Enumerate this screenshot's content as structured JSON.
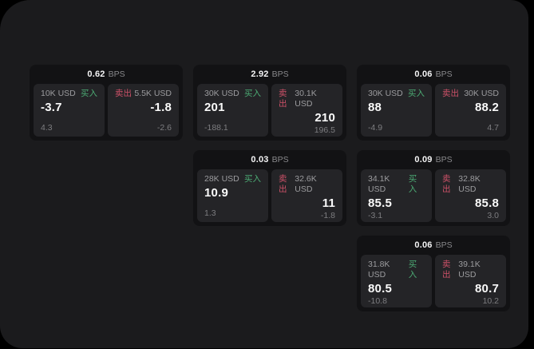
{
  "window": {
    "outer_background": "#000000",
    "surface_background": "#1b1b1d"
  },
  "labels": {
    "bps_unit": "BPS",
    "buy": "买入",
    "sell": "卖出"
  },
  "colors": {
    "buy_green": "#4cab74",
    "sell_red": "#cd5168",
    "card_background": "#121214",
    "tile_background": "#242427"
  },
  "cards": [
    {
      "bps": "0.62",
      "grid": {
        "row": 1,
        "col": 1
      },
      "buy": {
        "amount": "10K USD",
        "price": "-3.7",
        "delta": "4.3"
      },
      "sell": {
        "amount": "5.5K USD",
        "price": "-1.8",
        "delta": "-2.6"
      }
    },
    {
      "bps": "2.92",
      "grid": {
        "row": 1,
        "col": 2
      },
      "buy": {
        "amount": "30K USD",
        "price": "201",
        "delta": "-188.1"
      },
      "sell": {
        "amount": "30.1K USD",
        "price": "210",
        "delta": "196.5"
      }
    },
    {
      "bps": "0.06",
      "grid": {
        "row": 1,
        "col": 3
      },
      "buy": {
        "amount": "30K USD",
        "price": "88",
        "delta": "-4.9"
      },
      "sell": {
        "amount": "30K USD",
        "price": "88.2",
        "delta": "4.7"
      }
    },
    {
      "bps": "0.03",
      "grid": {
        "row": 2,
        "col": 2
      },
      "buy": {
        "amount": "28K USD",
        "price": "10.9",
        "delta": "1.3"
      },
      "sell": {
        "amount": "32.6K USD",
        "price": "11",
        "delta": "-1.8"
      }
    },
    {
      "bps": "0.09",
      "grid": {
        "row": 2,
        "col": 3
      },
      "buy": {
        "amount": "34.1K USD",
        "price": "85.5",
        "delta": "-3.1"
      },
      "sell": {
        "amount": "32.8K USD",
        "price": "85.8",
        "delta": "3.0"
      }
    },
    {
      "bps": "0.06",
      "grid": {
        "row": 3,
        "col": 3
      },
      "buy": {
        "amount": "31.8K USD",
        "price": "80.5",
        "delta": "-10.8"
      },
      "sell": {
        "amount": "39.1K USD",
        "price": "80.7",
        "delta": "10.2"
      }
    }
  ]
}
